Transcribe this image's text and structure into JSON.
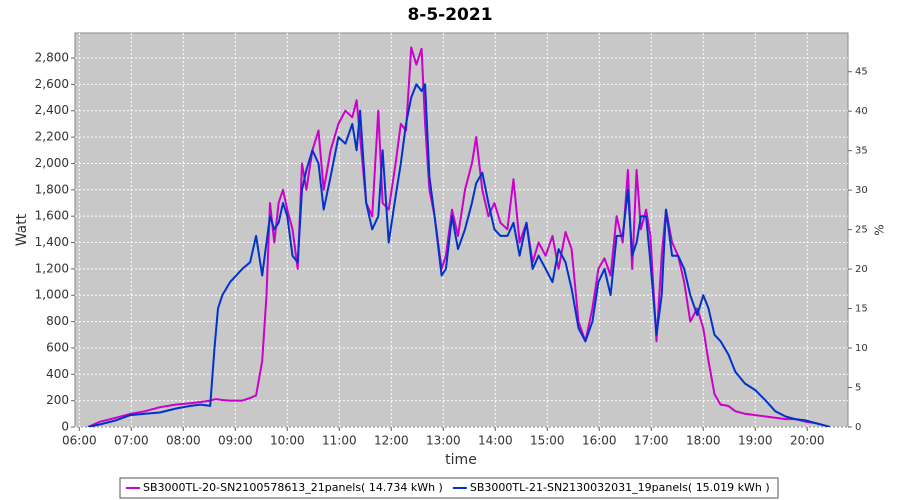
{
  "chart_data": {
    "type": "line",
    "title": "8-5-2021",
    "x_label": "time",
    "y_label": "Watt",
    "y2_label": "%",
    "x": [
      "06:10",
      "06:24",
      "06:42",
      "06:59",
      "07:16",
      "07:33",
      "07:51",
      "08:08",
      "08:20",
      "08:31",
      "08:36",
      "08:40",
      "08:45",
      "08:54",
      "09:08",
      "09:17",
      "09:24",
      "09:31",
      "09:36",
      "09:40",
      "09:45",
      "09:50",
      "09:55",
      "10:00",
      "10:06",
      "10:12",
      "10:17",
      "10:22",
      "10:29",
      "10:36",
      "10:42",
      "10:50",
      "10:59",
      "11:07",
      "11:15",
      "11:20",
      "11:24",
      "11:31",
      "11:38",
      "11:45",
      "11:50",
      "11:57",
      "12:05",
      "12:11",
      "12:17",
      "12:23",
      "12:29",
      "12:35",
      "12:39",
      "12:44",
      "12:50",
      "12:58",
      "13:03",
      "13:10",
      "13:17",
      "13:25",
      "13:33",
      "13:38",
      "13:45",
      "13:52",
      "13:59",
      "14:06",
      "14:14",
      "14:21",
      "14:28",
      "14:36",
      "14:43",
      "14:50",
      "14:58",
      "15:06",
      "15:13",
      "15:21",
      "15:28",
      "15:36",
      "15:44",
      "15:52",
      "15:59",
      "16:06",
      "16:13",
      "16:20",
      "16:27",
      "16:33",
      "16:38",
      "16:43",
      "16:48",
      "16:54",
      "16:59",
      "17:06",
      "17:12",
      "17:17",
      "17:24",
      "17:31",
      "17:38",
      "17:45",
      "17:53",
      "18:00",
      "18:06",
      "18:13",
      "18:20",
      "18:29",
      "18:37",
      "18:48",
      "19:00",
      "19:12",
      "19:23",
      "19:35",
      "19:46",
      "19:58",
      "20:09",
      "20:21",
      "20:26"
    ],
    "series": [
      {
        "name": "SB3000TL-20-SN2100578613_21panels( 14.734 kWh )",
        "color": "#cc00cc",
        "values": [
          0,
          40,
          70,
          100,
          120,
          150,
          170,
          180,
          190,
          200,
          210,
          210,
          205,
          200,
          200,
          220,
          240,
          500,
          1000,
          1700,
          1400,
          1700,
          1800,
          1650,
          1500,
          1200,
          2000,
          1800,
          2100,
          2250,
          1800,
          2100,
          2300,
          2400,
          2350,
          2480,
          2200,
          1700,
          1600,
          2400,
          1700,
          1650,
          2000,
          2300,
          2250,
          2880,
          2750,
          2870,
          2300,
          1800,
          1600,
          1200,
          1300,
          1650,
          1450,
          1800,
          2000,
          2200,
          1800,
          1600,
          1700,
          1550,
          1500,
          1880,
          1400,
          1550,
          1250,
          1400,
          1300,
          1450,
          1200,
          1480,
          1350,
          800,
          650,
          900,
          1200,
          1280,
          1150,
          1600,
          1400,
          1950,
          1200,
          1950,
          1500,
          1650,
          1450,
          650,
          1300,
          1650,
          1400,
          1300,
          1100,
          800,
          900,
          750,
          500,
          250,
          170,
          160,
          120,
          100,
          90,
          80,
          70,
          60,
          60,
          40,
          30,
          10,
          0
        ]
      },
      {
        "name": "SB3000TL-21-SN2130032031_19panels( 15.019 kWh )",
        "color": "#0033cc",
        "values": [
          0,
          20,
          50,
          90,
          100,
          110,
          140,
          160,
          170,
          160,
          600,
          900,
          1000,
          1100,
          1200,
          1250,
          1450,
          1150,
          1400,
          1600,
          1500,
          1550,
          1700,
          1600,
          1300,
          1250,
          1800,
          1950,
          2100,
          2000,
          1650,
          1900,
          2200,
          2150,
          2300,
          2100,
          2400,
          1700,
          1500,
          1600,
          2100,
          1400,
          1750,
          2000,
          2300,
          2500,
          2600,
          2550,
          2600,
          1900,
          1600,
          1150,
          1200,
          1600,
          1350,
          1500,
          1700,
          1850,
          1930,
          1700,
          1500,
          1450,
          1450,
          1550,
          1300,
          1550,
          1200,
          1300,
          1200,
          1100,
          1350,
          1250,
          1050,
          750,
          650,
          800,
          1100,
          1200,
          1000,
          1450,
          1450,
          1800,
          1300,
          1400,
          1600,
          1600,
          1250,
          700,
          1000,
          1650,
          1300,
          1300,
          1200,
          1000,
          850,
          1000,
          900,
          700,
          650,
          550,
          420,
          330,
          280,
          200,
          120,
          80,
          60,
          50,
          30,
          10,
          0
        ]
      }
    ],
    "xlim": [
      "05:55",
      "20:47"
    ],
    "xticks": [
      "06:00",
      "07:00",
      "08:00",
      "09:00",
      "10:00",
      "11:00",
      "12:00",
      "13:00",
      "14:00",
      "15:00",
      "16:00",
      "17:00",
      "18:00",
      "19:00",
      "20:00"
    ],
    "ylim": [
      0,
      2990
    ],
    "yticks": [
      0,
      200,
      400,
      600,
      800,
      {
        "value": 1000,
        "label": "1,000"
      },
      {
        "value": 1200,
        "label": "1,200"
      },
      {
        "value": 1400,
        "label": "1,400"
      },
      {
        "value": 1600,
        "label": "1,600"
      },
      {
        "value": 1800,
        "label": "1,800"
      },
      {
        "value": 2000,
        "label": "2,000"
      },
      {
        "value": 2200,
        "label": "2,200"
      },
      {
        "value": 2400,
        "label": "2,400"
      },
      {
        "value": 2600,
        "label": "2,600"
      },
      {
        "value": 2800,
        "label": "2,800"
      }
    ],
    "y2lim": [
      0,
      49.9
    ],
    "y2ticks": [
      0,
      5,
      10,
      15,
      20,
      25,
      30,
      35,
      40,
      45
    ],
    "grid": true,
    "legend": "bottom"
  }
}
